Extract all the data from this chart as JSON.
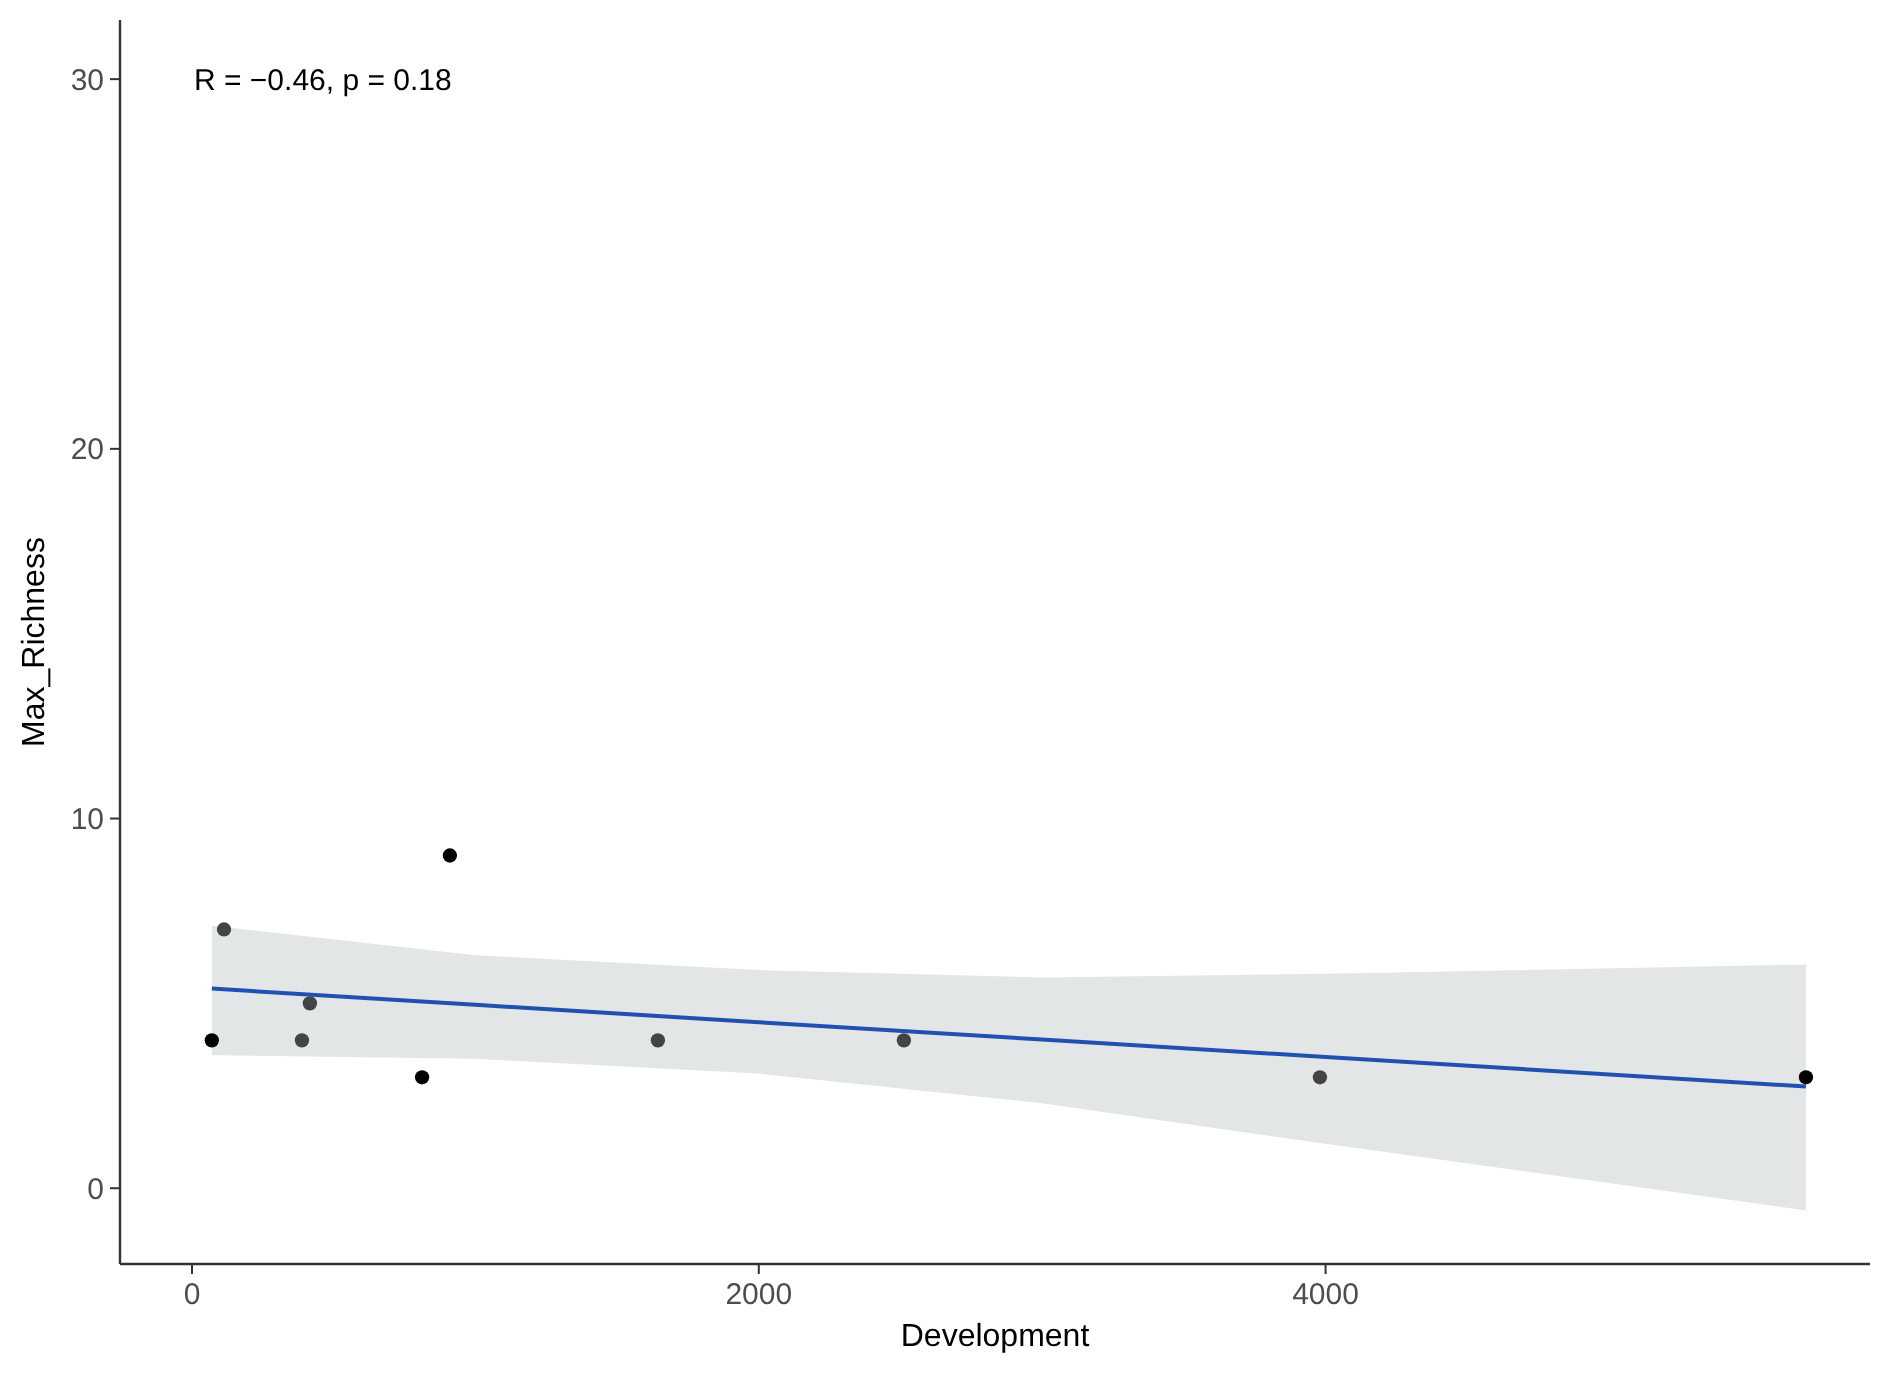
{
  "chart_data": {
    "type": "scatter",
    "xlabel": "Development",
    "ylabel": "Max_Richness",
    "xlim": [
      -254,
      5921
    ],
    "ylim": [
      -2.05,
      31.6
    ],
    "xticks": [
      0,
      2000,
      4000
    ],
    "yticks": [
      0,
      10,
      20,
      30
    ],
    "grid": false,
    "annotations": [
      "R = −0.46, p = 0.18"
    ],
    "series": [
      {
        "marker": "circle",
        "x": [
          70,
          113,
          388,
          416,
          812,
          910,
          1644,
          2512,
          3980,
          5695
        ],
        "values": [
          4,
          7,
          4,
          5,
          3,
          9,
          4,
          4,
          3,
          3
        ],
        "colors": [
          "#000000",
          "#444444",
          "#444444",
          "#444444",
          "#000000",
          "#000000",
          "#444444",
          "#444444",
          "#444444",
          "#000000"
        ]
      },
      {
        "type": "line",
        "color": "#2150b0",
        "x": [
          70,
          1000,
          2000,
          3000,
          4000,
          5695
        ],
        "values": [
          5.4,
          4.96,
          4.49,
          4.02,
          3.55,
          2.75
        ],
        "lower": [
          3.6,
          3.5,
          3.1,
          2.3,
          1.2,
          -0.6
        ],
        "upper": [
          7.1,
          6.3,
          5.9,
          5.7,
          5.8,
          6.05
        ]
      }
    ]
  }
}
